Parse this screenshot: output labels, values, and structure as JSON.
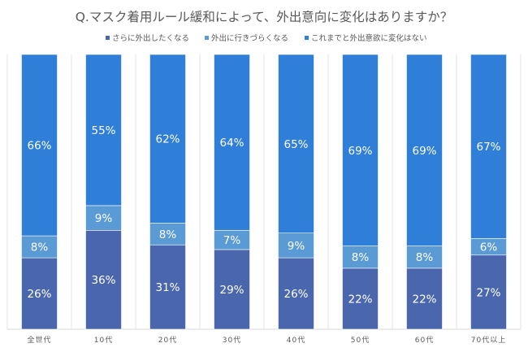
{
  "chart_data": {
    "type": "bar",
    "stacked": true,
    "percent_stacked": true,
    "title": "Q.マスク着用ルール緩和によって、外出意向に変化はありますか？",
    "xlabel": "",
    "ylabel": "",
    "ylim": [
      0,
      100
    ],
    "legend_position": "top",
    "categories": [
      "全世代",
      "10代",
      "20代",
      "30代",
      "40代",
      "50代",
      "60代",
      "70代以上"
    ],
    "series": [
      {
        "name": "さらに外出したくなる",
        "color": "#4A66AC",
        "values": [
          26,
          36,
          31,
          29,
          26,
          22,
          22,
          27
        ]
      },
      {
        "name": "外出に行きづらくなる",
        "color": "#5B9BD5",
        "values": [
          8,
          9,
          8,
          7,
          9,
          8,
          8,
          6
        ]
      },
      {
        "name": "これまでと外出意欲に変化はない",
        "color": "#2F7ED8",
        "values": [
          66,
          55,
          62,
          64,
          65,
          69,
          69,
          67
        ]
      }
    ],
    "value_suffix": "%"
  }
}
